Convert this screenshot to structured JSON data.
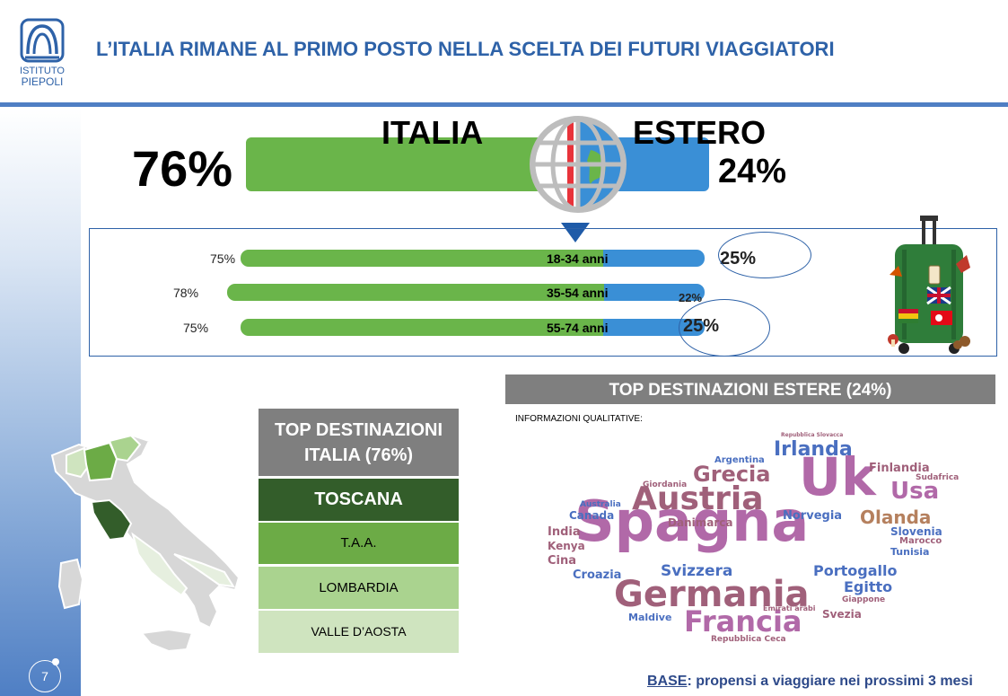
{
  "header": {
    "title": "L’ITALIA RIMANE AL PRIMO POSTO NELLA SCELTA DEI FUTURI VIAGGIATORI",
    "logo_line1": "ISTITUTO",
    "logo_line2": "PIEPOLI"
  },
  "summary": {
    "italia_label": "ITALIA",
    "estero_label": "ESTERO",
    "italia_pct": "76%",
    "estero_pct": "24%",
    "italia_value": 76,
    "estero_value": 24
  },
  "age_groups": [
    {
      "label": "18-34 anni",
      "italia_pct": "75%",
      "estero_pct": "25%",
      "italia": 75,
      "estero": 25
    },
    {
      "label": "35-54 anni",
      "italia_pct": "78%",
      "estero_pct": "22%",
      "italia": 78,
      "estero": 22
    },
    {
      "label": "55-74 anni",
      "italia_pct": "75%",
      "estero_pct": "25%",
      "italia": 75,
      "estero": 25
    }
  ],
  "italia_destinations": {
    "header_line1": "TOP DESTINAZIONI",
    "header_line2": "ITALIA (76%)",
    "items": [
      "TOSCANA",
      "T.A.A.",
      "LOMBARDIA",
      "VALLE D’AOSTA"
    ]
  },
  "estere_destinations": {
    "header": "TOP DESTINAZIONI ESTERE (24%)",
    "note": "INFORMAZIONI QUALITATIVE:",
    "words": [
      "Spagna",
      "Uk",
      "Germania",
      "Austria",
      "Francia",
      "Grecia",
      "Irlanda",
      "Usa",
      "Olanda",
      "Svizzera",
      "Portogallo",
      "Egitto",
      "Norvegia",
      "Finlandia",
      "Sudafrica",
      "Slovenia",
      "Marocco",
      "Tunisia",
      "Danimarca",
      "Argentina",
      "Giordania",
      "Australia",
      "Canada",
      "India",
      "Kenya",
      "Cina",
      "Croazia",
      "Maldive",
      "Emirati arabi",
      "Giappone",
      "Svezia",
      "Repubblica Ceca",
      "Repubblica Slovacca"
    ]
  },
  "footer": {
    "base_key": "BASE",
    "base_text": ": propensi a viaggiare nei prossimi 3 mesi",
    "page_number": "7"
  },
  "colors": {
    "brand_blue": "#2e62a8",
    "italia_green": "#6ab54a",
    "estero_blue": "#3a8fd6",
    "header_grey": "#7f7f7f",
    "toscana_green": "#335d2a"
  }
}
